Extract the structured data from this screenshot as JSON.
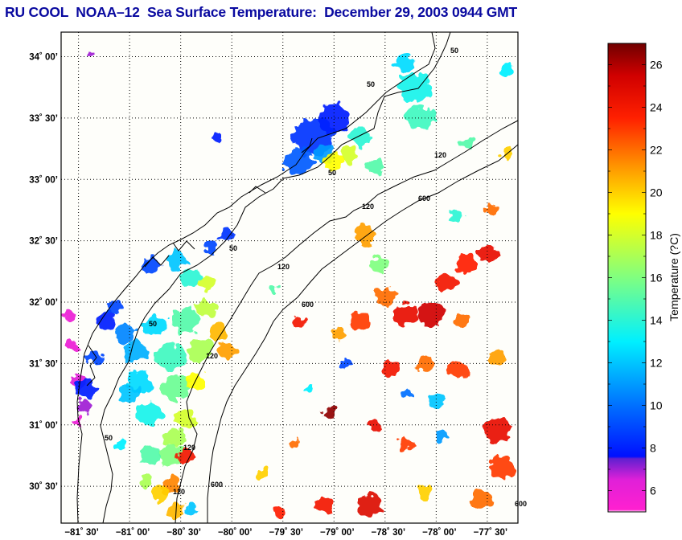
{
  "title": "RU COOL  NOAA–12  Sea Surface Temperature:  December 29, 2003 0944 GMT",
  "chart_data": {
    "type": "heatmap",
    "title": "RU COOL  NOAA–12  Sea Surface Temperature:  December 29, 2003 0944 GMT",
    "xlim": [
      -81.67,
      -77.2
    ],
    "ylim": [
      30.2,
      34.2
    ],
    "x_ticks": [
      {
        "value": -81.5,
        "label": "−81˚ 30’"
      },
      {
        "value": -81.0,
        "label": "−81˚ 00’"
      },
      {
        "value": -80.5,
        "label": "−80˚ 30’"
      },
      {
        "value": -80.0,
        "label": "−80˚ 00’"
      },
      {
        "value": -79.5,
        "label": "−79˚ 30’"
      },
      {
        "value": -79.0,
        "label": "−79˚ 00’"
      },
      {
        "value": -78.5,
        "label": "−78˚ 30’"
      },
      {
        "value": -78.0,
        "label": "−78˚ 00’"
      },
      {
        "value": -77.5,
        "label": "−77˚ 30’"
      }
    ],
    "y_ticks": [
      {
        "value": 34.0,
        "label": "34˚ 00’"
      },
      {
        "value": 33.5,
        "label": "33˚ 30’"
      },
      {
        "value": 33.0,
        "label": "33˚ 00’"
      },
      {
        "value": 32.5,
        "label": "32˚ 30’"
      },
      {
        "value": 32.0,
        "label": "32˚ 00’"
      },
      {
        "value": 31.5,
        "label": "31˚ 30’"
      },
      {
        "value": 31.0,
        "label": "31˚ 00’"
      },
      {
        "value": 30.5,
        "label": "30˚ 30’"
      }
    ],
    "grid": true,
    "colorbar": {
      "label": "Temperature (?C)",
      "range": [
        5,
        27
      ],
      "ticks": [
        6,
        8,
        10,
        12,
        14,
        16,
        18,
        20,
        22,
        24,
        26
      ],
      "tick_labels": [
        "6",
        "8",
        "10",
        "12",
        "14",
        "16",
        "18",
        "20",
        "22",
        "24",
        "26"
      ],
      "stops": [
        {
          "value": 5.0,
          "color": "#ffffff"
        },
        {
          "value": 5.1,
          "color": "#ff20d0"
        },
        {
          "value": 6.5,
          "color": "#e020d8"
        },
        {
          "value": 7.5,
          "color": "#6020d0"
        },
        {
          "value": 7.6,
          "color": "#0010ff"
        },
        {
          "value": 10.0,
          "color": "#0070ff"
        },
        {
          "value": 13.0,
          "color": "#00f0ff"
        },
        {
          "value": 16.0,
          "color": "#80ff80"
        },
        {
          "value": 19.0,
          "color": "#ffff00"
        },
        {
          "value": 21.0,
          "color": "#ffa000"
        },
        {
          "value": 23.5,
          "color": "#ff2000"
        },
        {
          "value": 25.5,
          "color": "#d00000"
        },
        {
          "value": 27.0,
          "color": "#700000"
        }
      ]
    },
    "isobath_labels": [
      "50",
      "50",
      "50",
      "50",
      "50",
      "50",
      "120",
      "120",
      "120",
      "120",
      "120",
      "120",
      "600",
      "600",
      "600",
      "600"
    ],
    "sst_patches": [
      {
        "lon": -81.58,
        "lat": 31.88,
        "r": 0.07,
        "t": 6
      },
      {
        "lon": -81.55,
        "lat": 31.65,
        "r": 0.06,
        "t": 6
      },
      {
        "lon": -81.5,
        "lat": 31.35,
        "r": 0.08,
        "t": 6.5
      },
      {
        "lon": -81.43,
        "lat": 31.3,
        "r": 0.1,
        "t": 8
      },
      {
        "lon": -81.45,
        "lat": 31.15,
        "r": 0.07,
        "t": 7
      },
      {
        "lon": -81.5,
        "lat": 31.02,
        "r": 0.05,
        "t": 6
      },
      {
        "lon": -81.35,
        "lat": 31.55,
        "r": 0.08,
        "t": 9
      },
      {
        "lon": -81.25,
        "lat": 31.85,
        "r": 0.1,
        "t": 8
      },
      {
        "lon": -81.15,
        "lat": 31.95,
        "r": 0.09,
        "t": 9
      },
      {
        "lon": -81.05,
        "lat": 31.75,
        "r": 0.1,
        "t": 10.5
      },
      {
        "lon": -80.95,
        "lat": 31.6,
        "r": 0.12,
        "t": 11.5
      },
      {
        "lon": -80.9,
        "lat": 31.35,
        "r": 0.13,
        "t": 12.5
      },
      {
        "lon": -81.0,
        "lat": 31.25,
        "r": 0.1,
        "t": 12
      },
      {
        "lon": -80.8,
        "lat": 31.1,
        "r": 0.12,
        "t": 13.5
      },
      {
        "lon": -80.75,
        "lat": 31.8,
        "r": 0.12,
        "t": 12.5
      },
      {
        "lon": -80.6,
        "lat": 31.55,
        "r": 0.14,
        "t": 14.5
      },
      {
        "lon": -80.55,
        "lat": 31.3,
        "r": 0.14,
        "t": 15.5
      },
      {
        "lon": -80.45,
        "lat": 31.85,
        "r": 0.13,
        "t": 15
      },
      {
        "lon": -80.3,
        "lat": 31.6,
        "r": 0.12,
        "t": 17
      },
      {
        "lon": -80.25,
        "lat": 31.95,
        "r": 0.1,
        "t": 17.5
      },
      {
        "lon": -80.15,
        "lat": 31.75,
        "r": 0.1,
        "t": 20.5
      },
      {
        "lon": -80.05,
        "lat": 31.6,
        "r": 0.08,
        "t": 21
      },
      {
        "lon": -80.35,
        "lat": 31.35,
        "r": 0.09,
        "t": 19
      },
      {
        "lon": -80.45,
        "lat": 31.05,
        "r": 0.1,
        "t": 18
      },
      {
        "lon": -80.55,
        "lat": 30.9,
        "r": 0.1,
        "t": 17
      },
      {
        "lon": -80.6,
        "lat": 30.75,
        "r": 0.12,
        "t": 16
      },
      {
        "lon": -80.8,
        "lat": 30.75,
        "r": 0.1,
        "t": 15
      },
      {
        "lon": -81.1,
        "lat": 30.85,
        "r": 0.06,
        "t": 13
      },
      {
        "lon": -80.45,
        "lat": 30.75,
        "r": 0.07,
        "t": 24
      },
      {
        "lon": -80.6,
        "lat": 30.5,
        "r": 0.1,
        "t": 21.5
      },
      {
        "lon": -80.7,
        "lat": 30.45,
        "r": 0.09,
        "t": 20
      },
      {
        "lon": -80.55,
        "lat": 30.3,
        "r": 0.08,
        "t": 20.5
      },
      {
        "lon": -80.85,
        "lat": 30.55,
        "r": 0.06,
        "t": 17
      },
      {
        "lon": -80.8,
        "lat": 32.3,
        "r": 0.09,
        "t": 9
      },
      {
        "lon": -80.55,
        "lat": 32.35,
        "r": 0.1,
        "t": 12
      },
      {
        "lon": -80.4,
        "lat": 32.2,
        "r": 0.1,
        "t": 14
      },
      {
        "lon": -80.25,
        "lat": 32.15,
        "r": 0.08,
        "t": 18
      },
      {
        "lon": -80.2,
        "lat": 32.45,
        "r": 0.07,
        "t": 9
      },
      {
        "lon": -80.05,
        "lat": 32.55,
        "r": 0.06,
        "t": 8.5
      },
      {
        "lon": -79.2,
        "lat": 33.35,
        "r": 0.2,
        "t": 8.5
      },
      {
        "lon": -79.0,
        "lat": 33.5,
        "r": 0.16,
        "t": 8
      },
      {
        "lon": -79.35,
        "lat": 33.15,
        "r": 0.14,
        "t": 9.5
      },
      {
        "lon": -79.1,
        "lat": 33.2,
        "r": 0.1,
        "t": 11
      },
      {
        "lon": -79.0,
        "lat": 33.15,
        "r": 0.1,
        "t": 19
      },
      {
        "lon": -78.85,
        "lat": 33.2,
        "r": 0.08,
        "t": 18
      },
      {
        "lon": -78.75,
        "lat": 33.35,
        "r": 0.1,
        "t": 14
      },
      {
        "lon": -78.6,
        "lat": 33.1,
        "r": 0.08,
        "t": 15
      },
      {
        "lon": -78.2,
        "lat": 33.75,
        "r": 0.16,
        "t": 13.5
      },
      {
        "lon": -78.15,
        "lat": 33.5,
        "r": 0.14,
        "t": 14.5
      },
      {
        "lon": -78.3,
        "lat": 33.95,
        "r": 0.1,
        "t": 12.5
      },
      {
        "lon": -77.7,
        "lat": 33.3,
        "r": 0.06,
        "t": 15
      },
      {
        "lon": -77.3,
        "lat": 33.2,
        "r": 0.06,
        "t": 20
      },
      {
        "lon": -77.3,
        "lat": 33.9,
        "r": 0.07,
        "t": 13
      },
      {
        "lon": -78.7,
        "lat": 32.55,
        "r": 0.1,
        "t": 21
      },
      {
        "lon": -78.55,
        "lat": 32.3,
        "r": 0.08,
        "t": 16
      },
      {
        "lon": -78.5,
        "lat": 32.05,
        "r": 0.1,
        "t": 22
      },
      {
        "lon": -78.3,
        "lat": 31.9,
        "r": 0.12,
        "t": 24.5
      },
      {
        "lon": -78.05,
        "lat": 31.9,
        "r": 0.13,
        "t": 25.5
      },
      {
        "lon": -77.9,
        "lat": 32.15,
        "r": 0.1,
        "t": 24
      },
      {
        "lon": -77.7,
        "lat": 32.3,
        "r": 0.1,
        "t": 23.5
      },
      {
        "lon": -77.5,
        "lat": 32.4,
        "r": 0.1,
        "t": 24.5
      },
      {
        "lon": -77.75,
        "lat": 31.85,
        "r": 0.08,
        "t": 22
      },
      {
        "lon": -78.75,
        "lat": 31.85,
        "r": 0.1,
        "t": 23
      },
      {
        "lon": -78.95,
        "lat": 31.75,
        "r": 0.07,
        "t": 21
      },
      {
        "lon": -78.45,
        "lat": 31.45,
        "r": 0.08,
        "t": 24
      },
      {
        "lon": -78.1,
        "lat": 31.5,
        "r": 0.08,
        "t": 22
      },
      {
        "lon": -77.8,
        "lat": 31.45,
        "r": 0.1,
        "t": 23
      },
      {
        "lon": -77.4,
        "lat": 31.55,
        "r": 0.08,
        "t": 21
      },
      {
        "lon": -79.05,
        "lat": 31.1,
        "r": 0.06,
        "t": 26.5
      },
      {
        "lon": -78.6,
        "lat": 31.0,
        "r": 0.07,
        "t": 24.5
      },
      {
        "lon": -78.3,
        "lat": 30.85,
        "r": 0.07,
        "t": 23
      },
      {
        "lon": -77.4,
        "lat": 30.95,
        "r": 0.14,
        "t": 24.5
      },
      {
        "lon": -77.35,
        "lat": 30.65,
        "r": 0.12,
        "t": 23
      },
      {
        "lon": -77.55,
        "lat": 30.4,
        "r": 0.1,
        "t": 22
      },
      {
        "lon": -79.1,
        "lat": 30.35,
        "r": 0.1,
        "t": 24
      },
      {
        "lon": -78.65,
        "lat": 30.35,
        "r": 0.12,
        "t": 25
      },
      {
        "lon": -78.1,
        "lat": 30.45,
        "r": 0.08,
        "t": 20
      },
      {
        "lon": -79.35,
        "lat": 31.85,
        "r": 0.06,
        "t": 24
      },
      {
        "lon": -79.4,
        "lat": 30.85,
        "r": 0.06,
        "t": 22
      },
      {
        "lon": -79.7,
        "lat": 30.6,
        "r": 0.06,
        "t": 20
      },
      {
        "lon": -79.55,
        "lat": 30.3,
        "r": 0.07,
        "t": 23.5
      },
      {
        "lon": -78.9,
        "lat": 31.5,
        "r": 0.05,
        "t": 9
      },
      {
        "lon": -78.3,
        "lat": 31.25,
        "r": 0.06,
        "t": 10
      },
      {
        "lon": -78.0,
        "lat": 31.2,
        "r": 0.07,
        "t": 12
      },
      {
        "lon": -77.95,
        "lat": 30.9,
        "r": 0.06,
        "t": 11
      },
      {
        "lon": -79.25,
        "lat": 31.3,
        "r": 0.05,
        "t": 13
      },
      {
        "lon": -79.6,
        "lat": 32.1,
        "r": 0.05,
        "t": 15
      },
      {
        "lon": -77.45,
        "lat": 32.75,
        "r": 0.06,
        "t": 22
      },
      {
        "lon": -77.8,
        "lat": 32.7,
        "r": 0.06,
        "t": 14
      },
      {
        "lon": -80.15,
        "lat": 33.35,
        "r": 0.04,
        "t": 8
      },
      {
        "lon": -81.38,
        "lat": 34.02,
        "r": 0.03,
        "t": 7
      },
      {
        "lon": -80.4,
        "lat": 30.3,
        "r": 0.05,
        "t": 12
      }
    ]
  },
  "colorbar_label": "Temperature (?C)"
}
